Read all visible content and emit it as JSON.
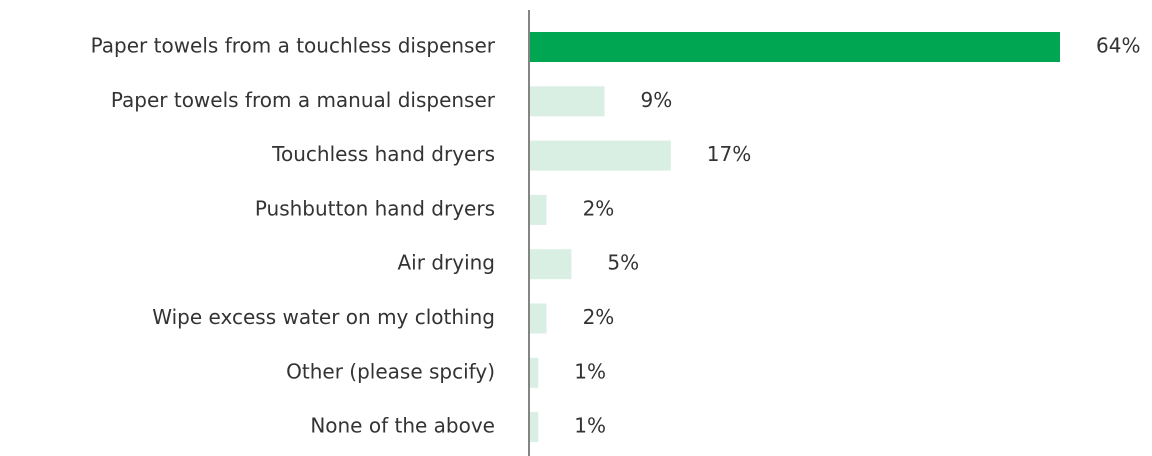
{
  "chart_data": {
    "type": "bar",
    "orientation": "horizontal",
    "categories": [
      "Paper towels from a touchless dispenser",
      "Paper towels from a manual dispenser",
      "Touchless hand dryers",
      "Pushbutton hand dryers",
      "Air drying",
      "Wipe excess water on my clothing",
      "Other (please spcify)",
      "None of the above"
    ],
    "values": [
      64,
      9,
      17,
      2,
      5,
      2,
      1,
      1
    ],
    "value_labels": [
      "64%",
      "9%",
      "17%",
      "2%",
      "5%",
      "2%",
      "1%",
      "1%"
    ],
    "colors": [
      "#00a651",
      "#d9efe4",
      "#d9efe4",
      "#d9efe4",
      "#d9efe4",
      "#d9efe4",
      "#d9efe4",
      "#d9efe4"
    ]
  }
}
